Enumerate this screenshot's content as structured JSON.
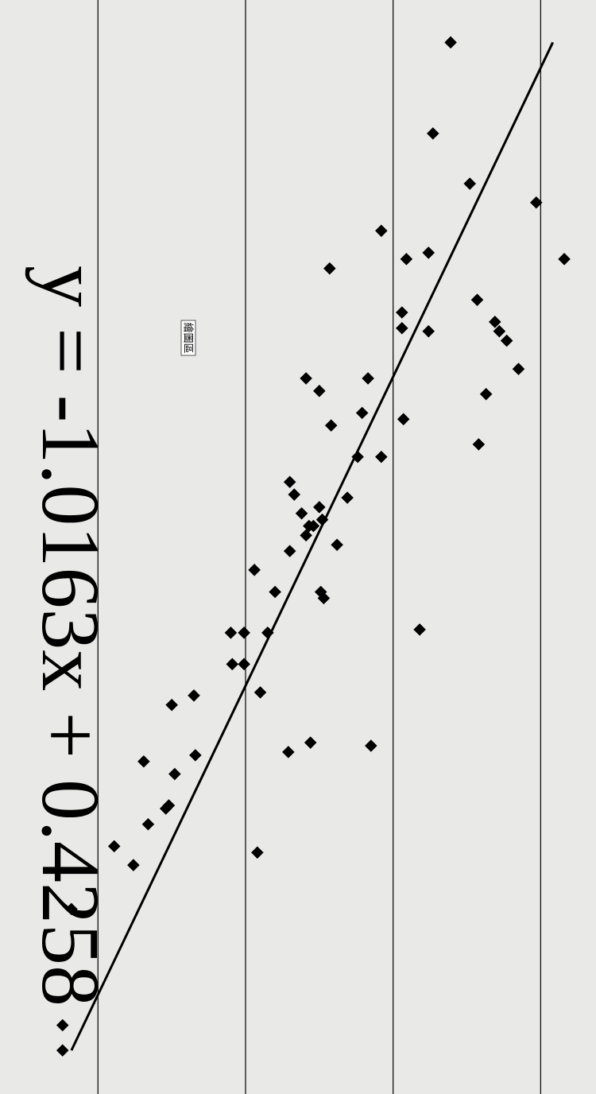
{
  "chart_data": {
    "type": "scatter",
    "title": "y = -1.0163x + 0.4258",
    "plot_area_label": "繪圖區",
    "trendline": {
      "slope": -1.0163,
      "intercept": 0.4258,
      "color": "#000000"
    },
    "color": "#000000",
    "grid": true,
    "xlim": [
      -1.765,
      1.719
    ],
    "ylim": [
      -1.664,
      2.375
    ],
    "yticks": [
      -1,
      0,
      1,
      2
    ],
    "x": [
      -1.63,
      -1.34,
      -1.18,
      -1.12,
      -0.94,
      -1.03,
      -0.96,
      -0.94,
      -0.91,
      -0.81,
      -0.74,
      -0.71,
      -0.68,
      -0.77,
      -0.72,
      -0.71,
      -0.59,
      -0.51,
      -0.56,
      -0.56,
      -0.52,
      -0.45,
      -0.43,
      -0.41,
      -0.35,
      -0.31,
      -0.31,
      -0.23,
      -0.19,
      -0.18,
      -0.15,
      -0.13,
      -0.09,
      -0.11,
      -0.09,
      -0.06,
      -0.03,
      -0.01,
      0.05,
      0.12,
      0.12,
      0.14,
      0.24,
      0.25,
      0.25,
      0.25,
      0.35,
      0.35,
      0.44,
      0.45,
      0.48,
      0.6,
      0.63,
      0.61,
      0.64,
      0.66,
      0.7,
      0.8,
      0.81,
      0.86,
      0.95,
      0.93,
      0.99,
      1.13,
      1.5,
      1.58
    ],
    "values": [
      1.39,
      1.27,
      1.52,
      1.97,
      2.16,
      0.92,
      1.24,
      1.09,
      0.57,
      1.57,
      1.69,
      1.72,
      1.77,
      1.06,
      1.06,
      1.24,
      1.85,
      1.63,
      0.83,
      0.41,
      0.5,
      0.79,
      1.07,
      0.58,
      1.58,
      0.76,
      0.92,
      0.3,
      0.33,
      0.69,
      0.5,
      0.38,
      0.43,
      0.52,
      0.46,
      0.41,
      0.62,
      0.3,
      0.06,
      0.2,
      0.51,
      0.53,
      1.18,
      -0.1,
      -0.01,
      0.15,
      -0.09,
      -0.01,
      0.1,
      -0.35,
      -0.5,
      0.44,
      0.29,
      0.85,
      -0.34,
      -0.69,
      -0.48,
      -0.52,
      -0.54,
      -0.66,
      0.08,
      -0.89,
      -0.76,
      -1.18,
      -1.24,
      -1.24
    ]
  }
}
